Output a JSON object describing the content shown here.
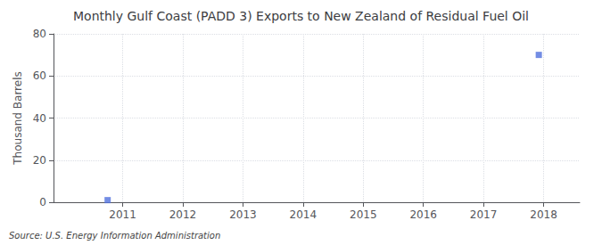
{
  "chart_data": {
    "type": "scatter",
    "title": "Monthly Gulf Coast (PADD 3) Exports to New Zealand of Residual Fuel Oil",
    "ylabel": "Thousand Barrels",
    "source": "Source: U.S. Energy Information Administration",
    "x": [
      2010.75,
      2017.92
    ],
    "values": [
      1,
      70
    ],
    "xlim": [
      2009.85,
      2018.6
    ],
    "ylim": [
      0,
      80
    ],
    "xticks": [
      2011,
      2012,
      2013,
      2014,
      2015,
      2016,
      2017,
      2018
    ],
    "yticks": [
      0,
      20,
      40,
      60,
      80
    ],
    "grid": true,
    "marker": "square"
  }
}
